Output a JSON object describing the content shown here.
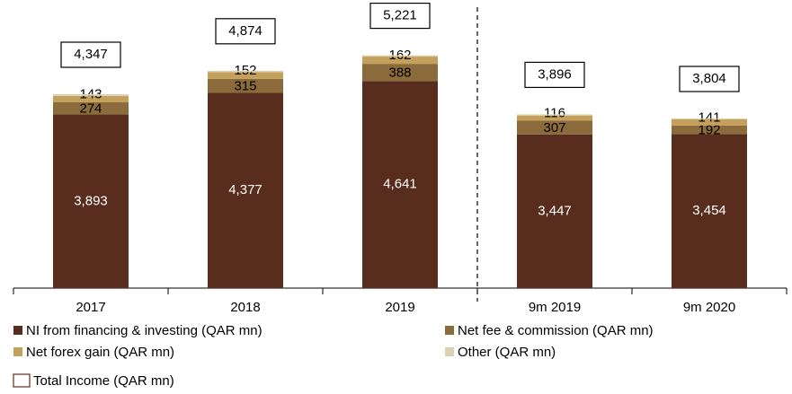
{
  "chart_data": {
    "type": "stacked_bar",
    "categories": [
      "2017",
      "2018",
      "2019",
      "9m 2019",
      "9m 2020"
    ],
    "series": [
      {
        "name": "NI from financing & investing (QAR mn)",
        "color": "#592d1d",
        "values": [
          3893,
          4377,
          4641,
          3447,
          3454
        ],
        "value_labels": [
          "3,893",
          "4,377",
          "4,641",
          "3,447",
          "3,454"
        ]
      },
      {
        "name": "Net fee & commission (QAR mn)",
        "color": "#8b6b3b",
        "values": [
          274,
          315,
          388,
          307,
          192
        ]
      },
      {
        "name": "Net forex gain (QAR mn)",
        "color": "#c4a05a",
        "values": [
          143,
          152,
          162,
          116,
          141
        ]
      },
      {
        "name": "Other (QAR mn)",
        "color": "#ddd1b3",
        "values": [
          37,
          30,
          30,
          26,
          17
        ]
      }
    ],
    "totals": {
      "name": "Total Income (QAR mn)",
      "values": [
        4347,
        4874,
        5221,
        3896,
        3804
      ],
      "value_labels": [
        "4,347",
        "4,874",
        "5,221",
        "3,896",
        "3,804"
      ]
    },
    "ylim": [
      0,
      6400
    ]
  }
}
